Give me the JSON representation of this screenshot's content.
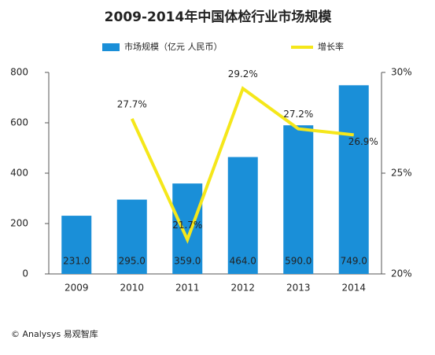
{
  "chart_data": {
    "type": "bar",
    "title": "2009-2014年中国体检行业市场规模",
    "categories": [
      "2009",
      "2010",
      "2011",
      "2012",
      "2013",
      "2014"
    ],
    "series": [
      {
        "name": "市场规模（亿元 人民币）",
        "color": "#1a8fd8",
        "type": "bar",
        "values": [
          231,
          295,
          359,
          464,
          590,
          749
        ],
        "value_labels": [
          "231.0",
          "295.0",
          "359.0",
          "464.0",
          "590.0",
          "749.0"
        ]
      },
      {
        "name": "增长率",
        "color": "#f5e71a",
        "type": "line",
        "axis": "y2",
        "values": [
          null,
          27.7,
          21.7,
          29.2,
          27.2,
          26.9
        ],
        "value_labels": [
          null,
          "27.7%",
          "21.7%",
          "29.2%",
          "27.2%",
          "26.9%"
        ]
      }
    ],
    "ylim": [
      0,
      800
    ],
    "yticks": [
      0,
      200,
      400,
      600,
      800
    ],
    "y2lim": [
      20,
      30
    ],
    "y2ticks": [
      {
        "value": 20,
        "label": "20%"
      },
      {
        "value": 25,
        "label": "25%"
      },
      {
        "value": 30,
        "label": "30%"
      }
    ],
    "grid": false,
    "legend": "top",
    "footer": "© Analysys 易观智库"
  }
}
